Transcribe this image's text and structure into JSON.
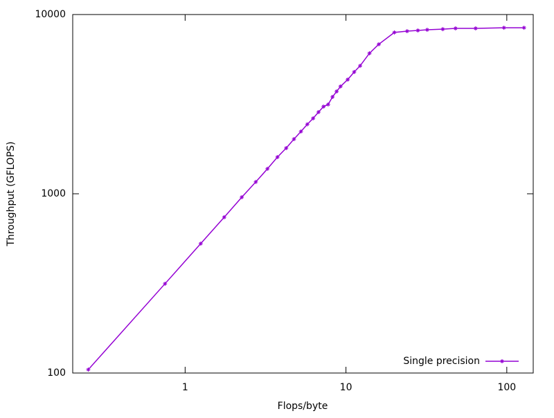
{
  "chart_data": {
    "type": "line",
    "x_label": "Flops/byte",
    "y_label": "Throughput (GFLOPS)",
    "x_log": true,
    "y_log": true,
    "xlim": [
      0.2,
      146
    ],
    "ylim": [
      100,
      10000
    ],
    "xticks": [
      1,
      10,
      100
    ],
    "yticks": [
      100,
      1000,
      10000
    ],
    "legend_position": "bottom-right",
    "x": [
      0.25,
      0.75,
      1.25,
      1.75,
      2.25,
      2.75,
      3.25,
      3.75,
      4.25,
      4.75,
      5.25,
      5.75,
      6.25,
      6.75,
      7.25,
      7.75,
      8.25,
      8.75,
      9.25,
      10.25,
      11.25,
      12.25,
      14,
      16,
      20,
      24,
      28,
      32,
      40,
      48,
      64,
      96,
      128
    ],
    "series": [
      {
        "name": "Single precision",
        "color": "#9400d3",
        "values": [
          104.5,
          315,
          527,
          740,
          957,
          1164,
          1378,
          1602,
          1798,
          2018,
          2225,
          2442,
          2636,
          2856,
          3066,
          3150,
          3472,
          3724,
          3970,
          4335,
          4780,
          5176,
          6080,
          6826,
          7943,
          8075,
          8150,
          8220,
          8290,
          8370,
          8370,
          8440,
          8440
        ]
      }
    ]
  }
}
